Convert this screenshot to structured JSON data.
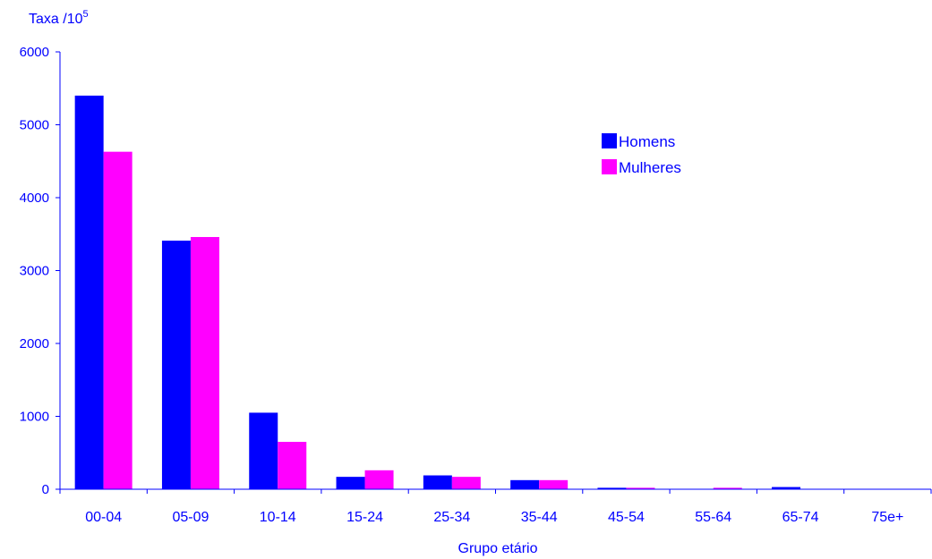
{
  "chart_data": {
    "type": "bar",
    "title": "",
    "ylabel": "Taxa /10",
    "ylabel_superscript": "5",
    "xlabel": "Grupo etário",
    "categories": [
      "00-04",
      "05-09",
      "10-14",
      "15-24",
      "25-34",
      "35-44",
      "45-54",
      "55-64",
      "65-74",
      "75e+"
    ],
    "series": [
      {
        "name": "Homens",
        "color": "#0000ff",
        "values": [
          5400,
          3410,
          1050,
          170,
          190,
          125,
          20,
          0,
          30,
          0
        ]
      },
      {
        "name": "Mulheres",
        "color": "#ff00ff",
        "values": [
          4630,
          3460,
          650,
          260,
          170,
          125,
          20,
          20,
          0,
          0
        ]
      }
    ],
    "ylim": [
      0,
      6000
    ],
    "yticks": [
      0,
      1000,
      2000,
      3000,
      4000,
      5000,
      6000
    ],
    "grid": false,
    "legend_position": "top-right",
    "axis_color": "#0000ff"
  }
}
